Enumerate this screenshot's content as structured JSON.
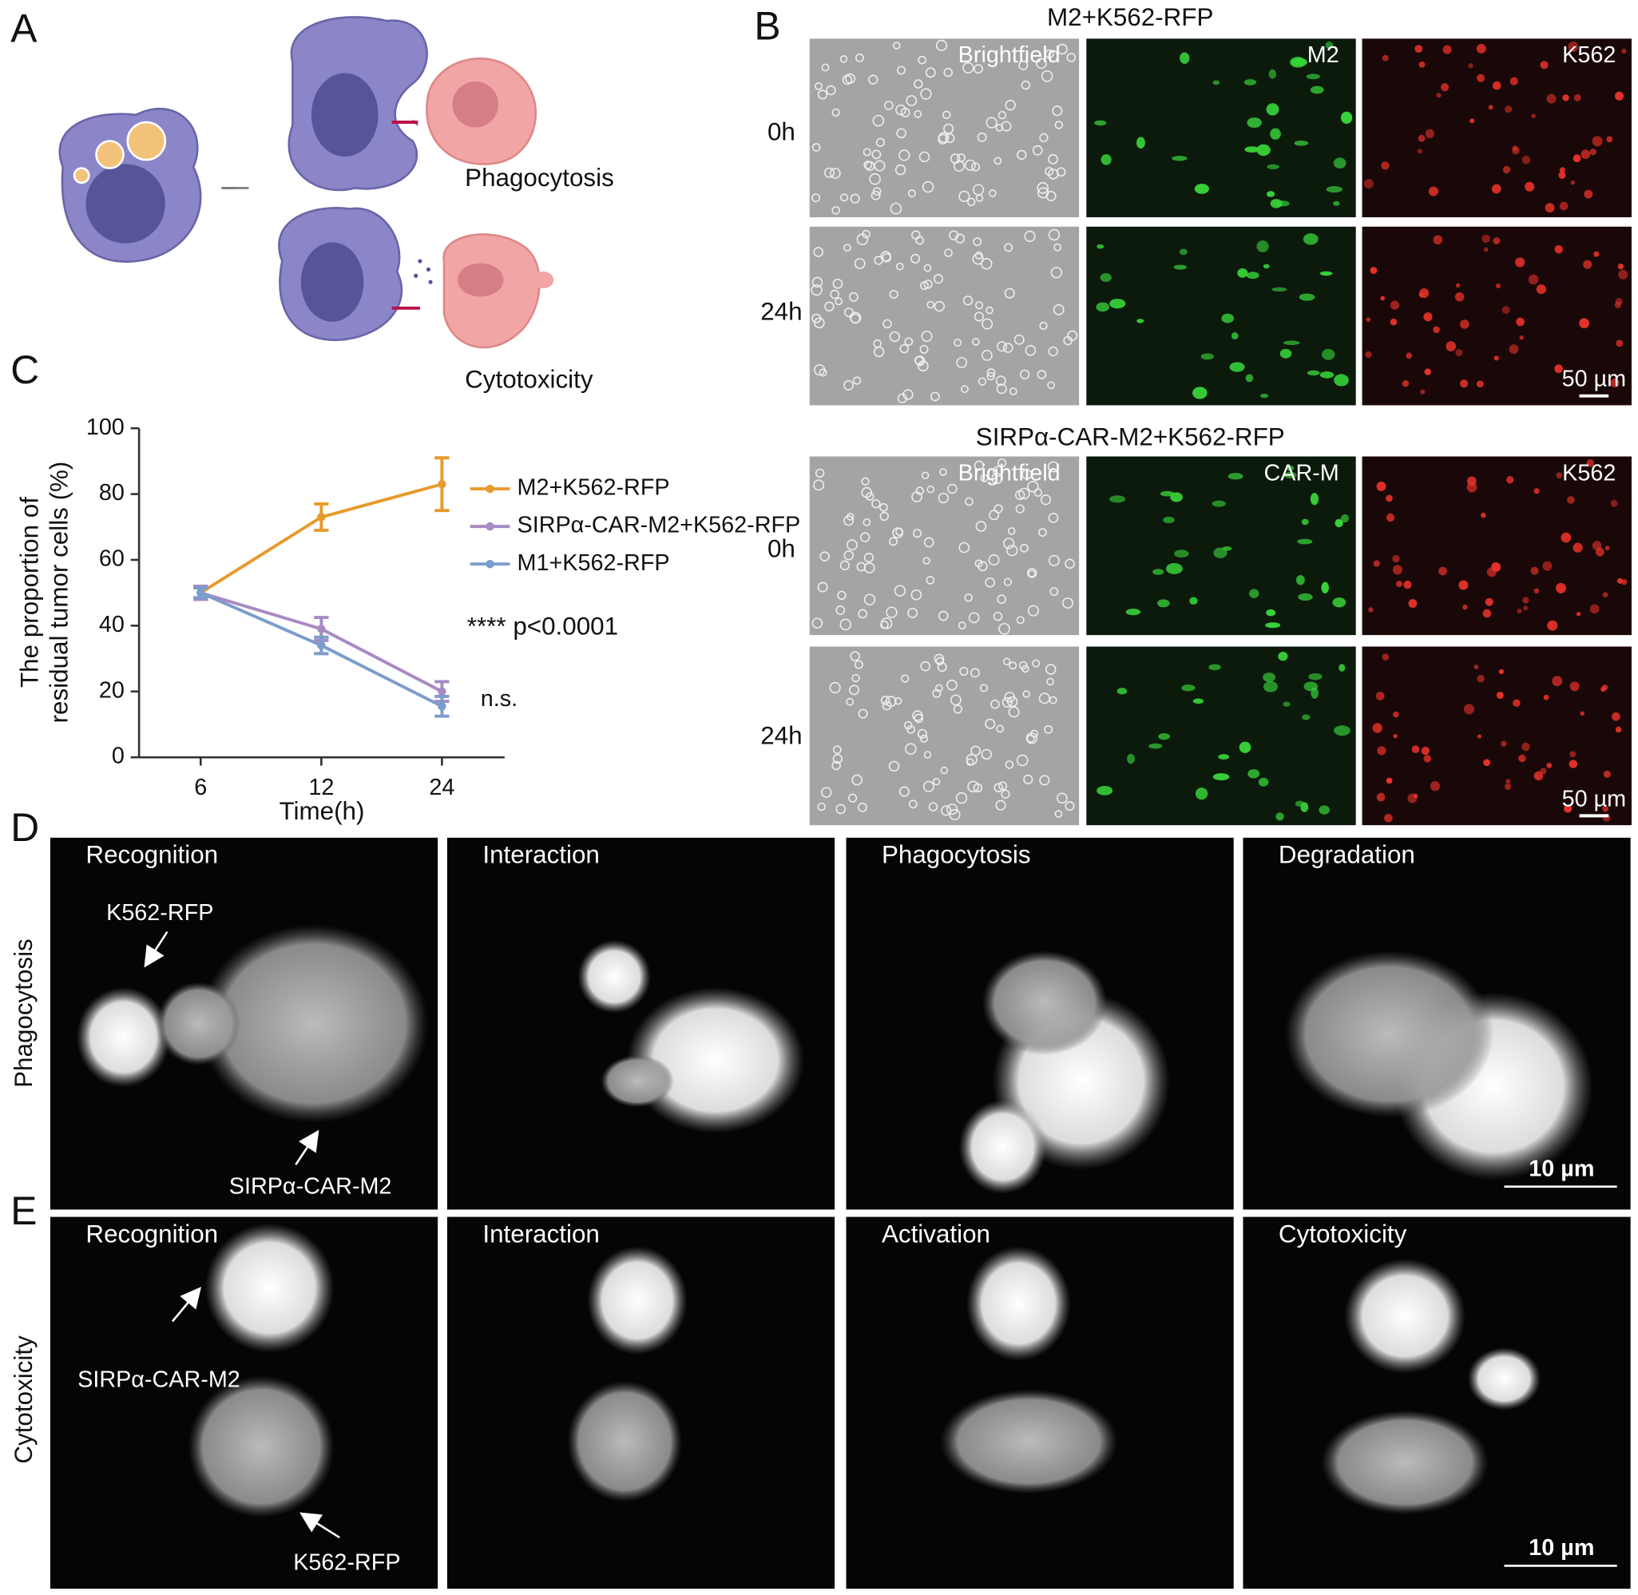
{
  "panel_labels": [
    "A",
    "B",
    "C",
    "D",
    "E"
  ],
  "panel_a": {
    "labels": [
      "Phagocytosis",
      "Cytotoxicity"
    ]
  },
  "panel_b": {
    "groups": [
      {
        "title": "M2+K562-RFP",
        "channels": [
          "Brightfield",
          "M2",
          "K562"
        ],
        "rows": [
          "0h",
          "24h"
        ],
        "scale_bar": "50 µm"
      },
      {
        "title": "SIRPα-CAR-M2+K562-RFP",
        "channels": [
          "Brightfield",
          "CAR-M",
          "K562"
        ],
        "rows": [
          "0h",
          "24h"
        ],
        "scale_bar": "50 µm"
      }
    ]
  },
  "chart_data": {
    "type": "line",
    "ylabel_lines": [
      "The proportion of",
      "residual tumor cells (%)"
    ],
    "xlabel": "Time(h)",
    "categories": [
      "6",
      "12",
      "24"
    ],
    "ylim": [
      0,
      100
    ],
    "yticks": [
      0,
      20,
      40,
      60,
      80,
      100
    ],
    "series": [
      {
        "name": "M2+K562-RFP",
        "color": "#e89a2c",
        "values": [
          50,
          73,
          83
        ],
        "errors": [
          2,
          4,
          8
        ]
      },
      {
        "name": "SIRPα-CAR-M2+K562-RFP",
        "color": "#a78bc4",
        "values": [
          50,
          39,
          20
        ],
        "errors": [
          2,
          3.5,
          3
        ]
      },
      {
        "name": "M1+K562-RFP",
        "color": "#7b9ccc",
        "values": [
          50,
          34,
          15.5
        ],
        "errors": [
          1.5,
          2.5,
          3
        ]
      }
    ],
    "annotations": [
      "**** p<0.0001",
      "n.s."
    ]
  },
  "panel_d": {
    "side_label": "Phagocytosis",
    "stages": [
      "Recognition",
      "Interaction",
      "Phagocytosis",
      "Degradation"
    ],
    "annotations": [
      "K562-RFP",
      "SIRPα-CAR-M2"
    ],
    "scale_bar": "10 µm"
  },
  "panel_e": {
    "side_label": "Cytotoxicity",
    "stages": [
      "Recognition",
      "Interaction",
      "Activation",
      "Cytotoxicity"
    ],
    "annotations": [
      "SIRPα-CAR-M2",
      "K562-RFP"
    ],
    "scale_bar": "10 µm"
  }
}
